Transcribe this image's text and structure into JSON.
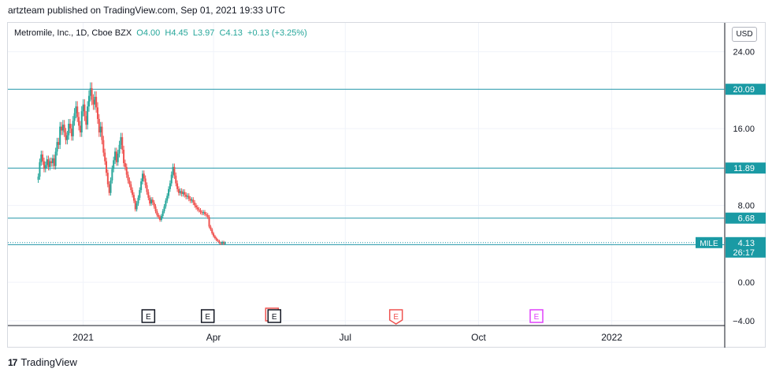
{
  "header": {
    "published": "artzteam published on TradingView.com, Sep 01, 2021 19:33 UTC"
  },
  "legend": {
    "symbol": "Metromile, Inc., 1D, Cboe BZX",
    "open": "O4.00",
    "high": "H4.45",
    "low": "L3.97",
    "close": "C4.13",
    "change": "+0.13 (+3.25%)"
  },
  "currency": "USD",
  "footer": {
    "brand": "TradingView",
    "logo": "17"
  },
  "colors": {
    "up": "#26a69a",
    "down": "#ef5350",
    "line": "#2196a8",
    "grid": "#f0f3fa"
  },
  "chart_data": {
    "type": "candlestick",
    "title": "Metromile, Inc., 1D, Cboe BZX",
    "ylim": [
      -4.5,
      27
    ],
    "y_ticks": [
      "24.00",
      "16.00",
      "8.00",
      "0.00",
      "−4.00"
    ],
    "y_tick_values": [
      24,
      16,
      8,
      0,
      -4
    ],
    "x_ticks": [
      "2021",
      "Apr",
      "Jul",
      "Oct",
      "2022"
    ],
    "x_tick_dates": [
      "2021-01-01",
      "2021-04-01",
      "2021-07-01",
      "2021-10-01",
      "2022-01-01"
    ],
    "xlim": [
      "2020-11-10",
      "2022-03-20"
    ],
    "horizontal_lines": [
      {
        "value": 20.09,
        "label": "20.09"
      },
      {
        "value": 11.89,
        "label": "11.89"
      },
      {
        "value": 6.68,
        "label": "6.68"
      },
      {
        "value": 3.92,
        "label": "3.92"
      }
    ],
    "last_price": {
      "symbol": "MILE",
      "value": 4.13,
      "label": "4.13",
      "countdown": "26:17"
    },
    "earnings_events": [
      {
        "date": "2021-02-15",
        "label": "E",
        "kind": "past"
      },
      {
        "date": "2021-03-28",
        "label": "E",
        "kind": "past"
      },
      {
        "date": "2021-05-13",
        "label": "E",
        "kind": "past-miss"
      },
      {
        "date": "2021-08-05",
        "label": "E",
        "kind": "miss"
      },
      {
        "date": "2021-11-10",
        "label": "E",
        "kind": "future"
      }
    ],
    "closes": {
      "start_date": "2020-12-01",
      "step_days": 1,
      "values": [
        11.0,
        12.5,
        13.3,
        12.6,
        11.8,
        12.2,
        12.8,
        12.0,
        12.6,
        12.4,
        12.9,
        12.1,
        13.6,
        14.6,
        14.3,
        16.2,
        15.8,
        16.4,
        15.6,
        14.8,
        15.3,
        16.5,
        16.0,
        15.2,
        16.8,
        17.6,
        18.3,
        17.2,
        16.3,
        15.6,
        17.8,
        18.5,
        17.3,
        16.4,
        18.3,
        19.4,
        20.2,
        19.0,
        18.5,
        19.3,
        18.2,
        17.0,
        15.6,
        16.2,
        14.8,
        13.5,
        12.6,
        11.4,
        10.2,
        9.3,
        10.6,
        11.8,
        12.7,
        13.6,
        12.5,
        13.4,
        14.3,
        15.1,
        13.8,
        12.4,
        12.0,
        11.2,
        10.6,
        10.2,
        9.6,
        9.1,
        8.5,
        7.6,
        8.2,
        8.8,
        9.6,
        10.5,
        11.3,
        10.8,
        10.1,
        9.4,
        8.8,
        8.2,
        8.6,
        8.3,
        7.9,
        7.4,
        7.0,
        6.8,
        6.5,
        6.9,
        7.4,
        7.9,
        8.5,
        9.0,
        9.7,
        10.3,
        11.2,
        12.0,
        11.1,
        10.3,
        9.7,
        9.3,
        9.5,
        9.2,
        9.4,
        9.1,
        8.9,
        9.0,
        8.7,
        8.5,
        8.6,
        8.3,
        8.0,
        7.8,
        7.6,
        7.5,
        7.3,
        7.2,
        7.3,
        7.1,
        7.0,
        6.8,
        5.8,
        5.5,
        5.1,
        4.8,
        4.6,
        4.4,
        4.3,
        4.1,
        4.0,
        4.2,
        4.0,
        4.13
      ]
    }
  }
}
